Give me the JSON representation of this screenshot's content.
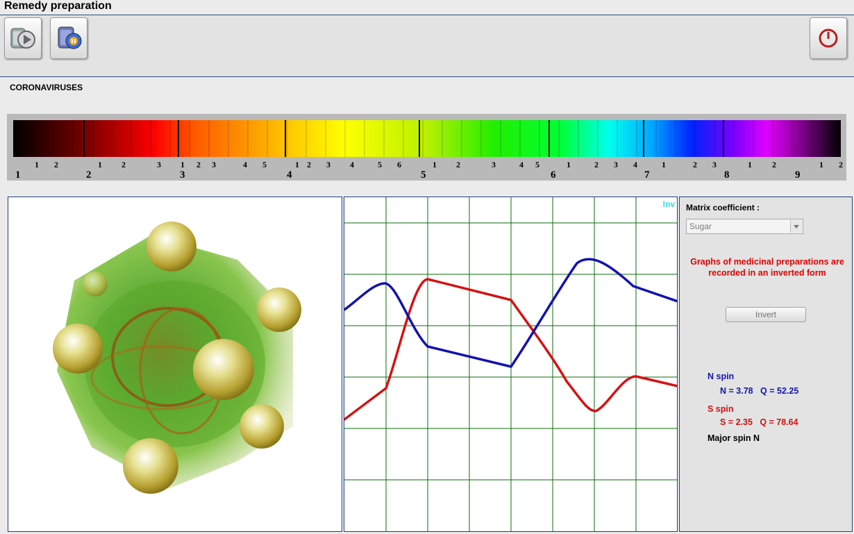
{
  "window": {
    "title": "Remedy preparation"
  },
  "toolbar": {
    "buttons": [
      {
        "name": "play-button",
        "icon": "play-icon"
      },
      {
        "name": "preparation-button",
        "icon": "remedy-jar-icon"
      }
    ],
    "power": {
      "name": "power-button",
      "icon": "power-icon"
    }
  },
  "virus": {
    "name": "CORONAVIRUSES"
  },
  "spectrum": {
    "major_labels": [
      "1",
      "2",
      "3",
      "4",
      "5",
      "6",
      "7",
      "8",
      "9"
    ],
    "minor_labels": [
      "1",
      "2",
      "1",
      "2",
      "3",
      "1",
      "2",
      "3",
      "4",
      "5",
      "1",
      "2",
      "3",
      "4",
      "5",
      "6",
      "1",
      "2",
      "3",
      "4",
      "5",
      "1",
      "2",
      "3",
      "4",
      "1",
      "2",
      "3",
      "1",
      "2",
      "1",
      "2"
    ]
  },
  "graph": {
    "inv_label": "Inv",
    "colors": {
      "grid": "#0a6b0a",
      "n_spin": "#1212b0",
      "s_spin": "#d41212"
    }
  },
  "side": {
    "matrix_label": "Matrix coefficient :",
    "matrix_value": "Sugar",
    "note": "Graphs of medicinal preparations are recorded in an inverted form",
    "invert_label": "Invert",
    "n_spin": {
      "title": "N spin",
      "value": "N = 3.78   Q = 52.25"
    },
    "s_spin": {
      "title": "S spin",
      "value": "S = 2.35   Q = 78.64"
    },
    "major_spin": "Major spin N"
  }
}
